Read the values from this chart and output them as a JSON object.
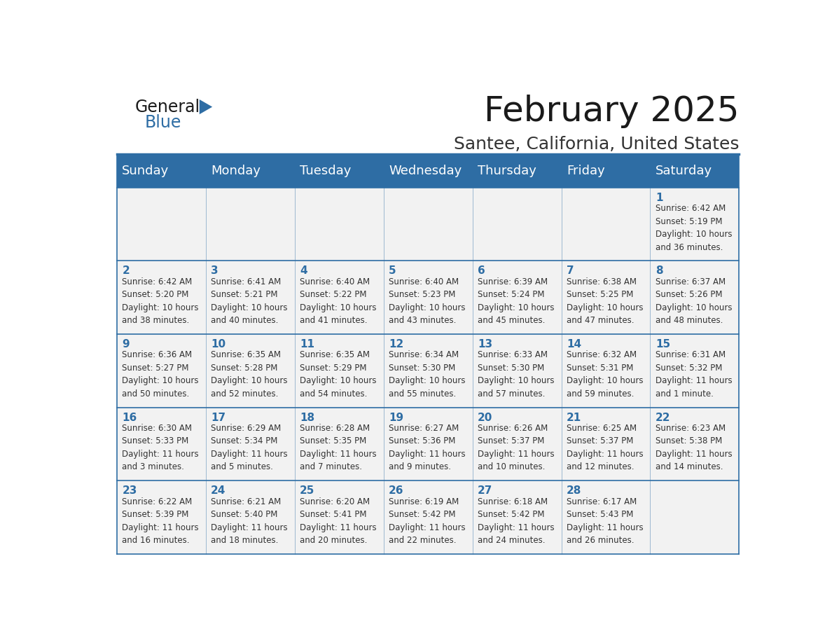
{
  "title": "February 2025",
  "subtitle": "Santee, California, United States",
  "header_bg_color": "#2E6DA4",
  "header_text_color": "#FFFFFF",
  "cell_bg_color": "#F2F2F2",
  "cell_text_color": "#333333",
  "day_number_color": "#2E6DA4",
  "border_color": "#2E6DA4",
  "days_of_week": [
    "Sunday",
    "Monday",
    "Tuesday",
    "Wednesday",
    "Thursday",
    "Friday",
    "Saturday"
  ],
  "weeks": [
    [
      {
        "day": null,
        "info": null
      },
      {
        "day": null,
        "info": null
      },
      {
        "day": null,
        "info": null
      },
      {
        "day": null,
        "info": null
      },
      {
        "day": null,
        "info": null
      },
      {
        "day": null,
        "info": null
      },
      {
        "day": 1,
        "info": "Sunrise: 6:42 AM\nSunset: 5:19 PM\nDaylight: 10 hours\nand 36 minutes."
      }
    ],
    [
      {
        "day": 2,
        "info": "Sunrise: 6:42 AM\nSunset: 5:20 PM\nDaylight: 10 hours\nand 38 minutes."
      },
      {
        "day": 3,
        "info": "Sunrise: 6:41 AM\nSunset: 5:21 PM\nDaylight: 10 hours\nand 40 minutes."
      },
      {
        "day": 4,
        "info": "Sunrise: 6:40 AM\nSunset: 5:22 PM\nDaylight: 10 hours\nand 41 minutes."
      },
      {
        "day": 5,
        "info": "Sunrise: 6:40 AM\nSunset: 5:23 PM\nDaylight: 10 hours\nand 43 minutes."
      },
      {
        "day": 6,
        "info": "Sunrise: 6:39 AM\nSunset: 5:24 PM\nDaylight: 10 hours\nand 45 minutes."
      },
      {
        "day": 7,
        "info": "Sunrise: 6:38 AM\nSunset: 5:25 PM\nDaylight: 10 hours\nand 47 minutes."
      },
      {
        "day": 8,
        "info": "Sunrise: 6:37 AM\nSunset: 5:26 PM\nDaylight: 10 hours\nand 48 minutes."
      }
    ],
    [
      {
        "day": 9,
        "info": "Sunrise: 6:36 AM\nSunset: 5:27 PM\nDaylight: 10 hours\nand 50 minutes."
      },
      {
        "day": 10,
        "info": "Sunrise: 6:35 AM\nSunset: 5:28 PM\nDaylight: 10 hours\nand 52 minutes."
      },
      {
        "day": 11,
        "info": "Sunrise: 6:35 AM\nSunset: 5:29 PM\nDaylight: 10 hours\nand 54 minutes."
      },
      {
        "day": 12,
        "info": "Sunrise: 6:34 AM\nSunset: 5:30 PM\nDaylight: 10 hours\nand 55 minutes."
      },
      {
        "day": 13,
        "info": "Sunrise: 6:33 AM\nSunset: 5:30 PM\nDaylight: 10 hours\nand 57 minutes."
      },
      {
        "day": 14,
        "info": "Sunrise: 6:32 AM\nSunset: 5:31 PM\nDaylight: 10 hours\nand 59 minutes."
      },
      {
        "day": 15,
        "info": "Sunrise: 6:31 AM\nSunset: 5:32 PM\nDaylight: 11 hours\nand 1 minute."
      }
    ],
    [
      {
        "day": 16,
        "info": "Sunrise: 6:30 AM\nSunset: 5:33 PM\nDaylight: 11 hours\nand 3 minutes."
      },
      {
        "day": 17,
        "info": "Sunrise: 6:29 AM\nSunset: 5:34 PM\nDaylight: 11 hours\nand 5 minutes."
      },
      {
        "day": 18,
        "info": "Sunrise: 6:28 AM\nSunset: 5:35 PM\nDaylight: 11 hours\nand 7 minutes."
      },
      {
        "day": 19,
        "info": "Sunrise: 6:27 AM\nSunset: 5:36 PM\nDaylight: 11 hours\nand 9 minutes."
      },
      {
        "day": 20,
        "info": "Sunrise: 6:26 AM\nSunset: 5:37 PM\nDaylight: 11 hours\nand 10 minutes."
      },
      {
        "day": 21,
        "info": "Sunrise: 6:25 AM\nSunset: 5:37 PM\nDaylight: 11 hours\nand 12 minutes."
      },
      {
        "day": 22,
        "info": "Sunrise: 6:23 AM\nSunset: 5:38 PM\nDaylight: 11 hours\nand 14 minutes."
      }
    ],
    [
      {
        "day": 23,
        "info": "Sunrise: 6:22 AM\nSunset: 5:39 PM\nDaylight: 11 hours\nand 16 minutes."
      },
      {
        "day": 24,
        "info": "Sunrise: 6:21 AM\nSunset: 5:40 PM\nDaylight: 11 hours\nand 18 minutes."
      },
      {
        "day": 25,
        "info": "Sunrise: 6:20 AM\nSunset: 5:41 PM\nDaylight: 11 hours\nand 20 minutes."
      },
      {
        "day": 26,
        "info": "Sunrise: 6:19 AM\nSunset: 5:42 PM\nDaylight: 11 hours\nand 22 minutes."
      },
      {
        "day": 27,
        "info": "Sunrise: 6:18 AM\nSunset: 5:42 PM\nDaylight: 11 hours\nand 24 minutes."
      },
      {
        "day": 28,
        "info": "Sunrise: 6:17 AM\nSunset: 5:43 PM\nDaylight: 11 hours\nand 26 minutes."
      },
      {
        "day": null,
        "info": null
      }
    ]
  ],
  "title_fontsize": 36,
  "subtitle_fontsize": 18,
  "header_fontsize": 13,
  "day_num_fontsize": 11,
  "cell_info_fontsize": 8.5,
  "logo_general_fontsize": 17,
  "logo_blue_fontsize": 17
}
